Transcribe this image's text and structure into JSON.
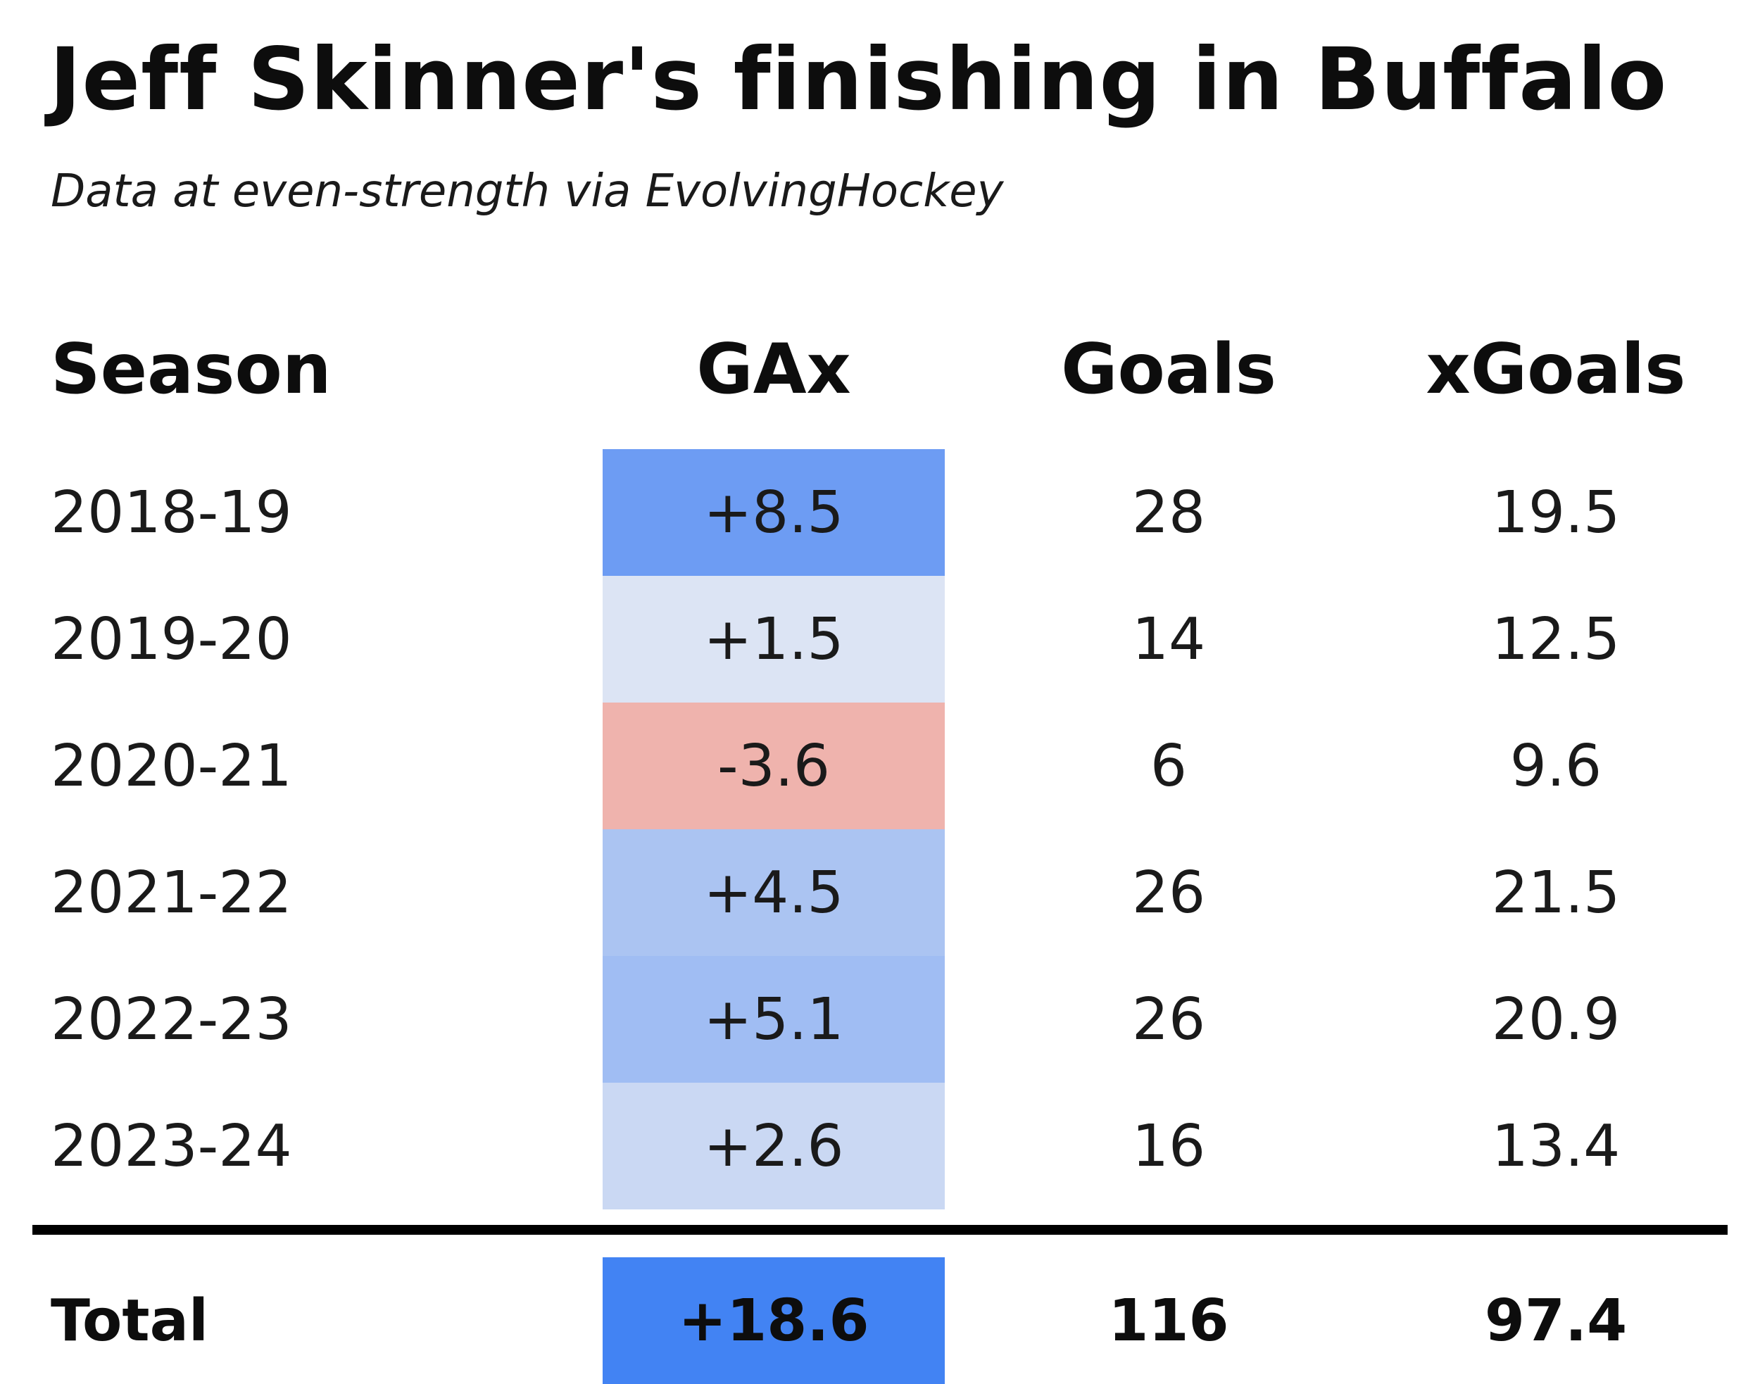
{
  "title": "Jeff Skinner's finishing in Buffalo",
  "subtitle": "Data at even-strength via EvolvingHockey",
  "chart_data": {
    "type": "table",
    "title": "Jeff Skinner's finishing in Buffalo",
    "subtitle": "Data at even-strength via EvolvingHockey",
    "columns": [
      "Season",
      "GAx",
      "Goals",
      "xGoals"
    ],
    "rows": [
      {
        "season": "2018-19",
        "gax": "+8.5",
        "gax_value": 8.5,
        "goals": "28",
        "xgoals": "19.5",
        "color": "#6d9cf3"
      },
      {
        "season": "2019-20",
        "gax": "+1.5",
        "gax_value": 1.5,
        "goals": "14",
        "xgoals": "12.5",
        "color": "#dce4f4"
      },
      {
        "season": "2020-21",
        "gax": "-3.6",
        "gax_value": -3.6,
        "goals": "6",
        "xgoals": "9.6",
        "color": "#efb3ad"
      },
      {
        "season": "2021-22",
        "gax": "+4.5",
        "gax_value": 4.5,
        "goals": "26",
        "xgoals": "21.5",
        "color": "#abc4f2"
      },
      {
        "season": "2022-23",
        "gax": "+5.1",
        "gax_value": 5.1,
        "goals": "26",
        "xgoals": "20.9",
        "color": "#a0bdf3"
      },
      {
        "season": "2023-24",
        "gax": "+2.6",
        "gax_value": 2.6,
        "goals": "16",
        "xgoals": "13.4",
        "color": "#cad8f3"
      }
    ],
    "total": {
      "label": "Total",
      "gax": "+18.6",
      "gax_value": 18.6,
      "goals": "116",
      "xgoals": "97.4",
      "color": "#4283f3"
    }
  }
}
